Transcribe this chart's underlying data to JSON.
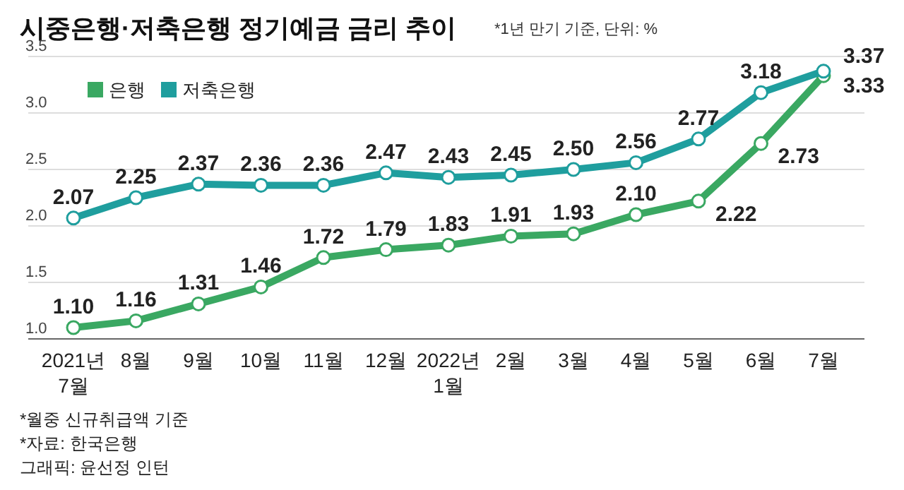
{
  "chart_data": {
    "type": "line",
    "title": "시중은행·저축은행 정기예금 금리 추이",
    "subtitle": "*1년 만기 기준, 단위: %",
    "categories": [
      "2021년\n7월",
      "8월",
      "9월",
      "10월",
      "11월",
      "12월",
      "2022년\n1월",
      "2월",
      "3월",
      "4월",
      "5월",
      "6월",
      "7월"
    ],
    "series": [
      {
        "name": "은행",
        "color": "#3aa862",
        "values": [
          1.1,
          1.16,
          1.31,
          1.46,
          1.72,
          1.79,
          1.83,
          1.91,
          1.93,
          2.1,
          2.22,
          2.73,
          3.33
        ],
        "value_labels": [
          "1.10",
          "1.16",
          "1.31",
          "1.46",
          "1.72",
          "1.79",
          "1.83",
          "1.91",
          "1.93",
          "2.10",
          "2.22",
          "2.73",
          "3.33"
        ]
      },
      {
        "name": "저축은행",
        "color": "#1f9e9e",
        "values": [
          2.07,
          2.25,
          2.37,
          2.36,
          2.36,
          2.47,
          2.43,
          2.45,
          2.5,
          2.56,
          2.77,
          3.18,
          3.37
        ],
        "value_labels": [
          "2.07",
          "2.25",
          "2.37",
          "2.36",
          "2.36",
          "2.47",
          "2.43",
          "2.45",
          "2.50",
          "2.56",
          "2.77",
          "3.18",
          "3.37"
        ]
      }
    ],
    "ylim": [
      1,
      3.5
    ],
    "yticks": [
      {
        "value": 1,
        "label": "1.0"
      },
      1.5,
      {
        "value": 2,
        "label": "2.0"
      },
      2.5,
      {
        "value": 3,
        "label": "3.0"
      },
      3.5
    ],
    "grid": "y",
    "legend": "top left",
    "marker": "circle",
    "line_style": "solid",
    "annotations": [
      "*월중 신규취급액 기준",
      "*자료: 한국은행",
      "그래픽: 윤선정 인턴"
    ]
  }
}
